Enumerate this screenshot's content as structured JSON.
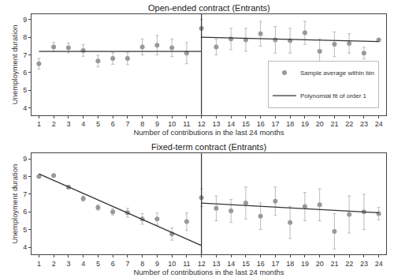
{
  "chart_data": [
    {
      "type": "scatter",
      "title": "Open-ended contract (Entrants)",
      "x_label": "Number of contributions in the last 24 months",
      "y_label": "Unemployment duration",
      "xlim": [
        0.5,
        24.5
      ],
      "ylim": [
        3.6,
        9.3
      ],
      "xticks": [
        1,
        2,
        3,
        4,
        5,
        6,
        7,
        8,
        9,
        10,
        11,
        12,
        13,
        14,
        15,
        16,
        17,
        18,
        19,
        20,
        21,
        22,
        23,
        24
      ],
      "yticks": [
        4,
        5,
        6,
        7,
        8,
        9
      ],
      "grid": false,
      "legend": "lower right",
      "vline": 12,
      "series": [
        {
          "name": "Sample average within bin",
          "type": "scatter",
          "marker": "circle",
          "color": "#999999",
          "x": [
            1,
            2,
            3,
            4,
            5,
            6,
            7,
            8,
            9,
            10,
            11,
            12,
            13,
            14,
            15,
            16,
            17,
            18,
            19,
            20,
            21,
            22,
            23,
            24
          ],
          "values": [
            6.5,
            7.45,
            7.4,
            7.25,
            6.65,
            6.8,
            6.8,
            7.45,
            7.55,
            7.4,
            7.1,
            8.5,
            7.45,
            7.9,
            7.85,
            8.2,
            7.85,
            7.8,
            8.25,
            7.2,
            7.6,
            7.65,
            7.1,
            7.85
          ],
          "errors": [
            0.3,
            0.25,
            0.28,
            0.33,
            0.33,
            0.33,
            0.35,
            0.45,
            0.55,
            0.5,
            0.6,
            0.5,
            0.45,
            0.6,
            0.65,
            0.7,
            0.75,
            0.7,
            0.65,
            0.7,
            0.7,
            0.55,
            0.33,
            0.05
          ]
        },
        {
          "name": "Polynomial fit of order 1",
          "type": "line",
          "line_style": "solid",
          "color": "#333333",
          "segments": [
            {
              "x": [
                1,
                12
              ],
              "values": [
                7.2,
                7.2
              ]
            },
            {
              "x": [
                12,
                24
              ],
              "values": [
                8.0,
                7.75
              ]
            }
          ]
        }
      ]
    },
    {
      "type": "scatter",
      "title": "Fixed-term contract (Entrants)",
      "x_label": "Number of contributions in the last 24 months",
      "y_label": "Unemployment duration",
      "xlim": [
        0.5,
        24.5
      ],
      "ylim": [
        3.6,
        9.3
      ],
      "xticks": [
        1,
        2,
        3,
        4,
        5,
        6,
        7,
        8,
        9,
        10,
        11,
        12,
        13,
        14,
        15,
        16,
        17,
        18,
        19,
        20,
        21,
        22,
        23,
        24
      ],
      "yticks": [
        4,
        5,
        6,
        7,
        8,
        9
      ],
      "grid": false,
      "vline": 12,
      "series": [
        {
          "name": "Sample average within bin",
          "type": "scatter",
          "marker": "circle",
          "color": "#999999",
          "x": [
            1,
            2,
            3,
            4,
            5,
            6,
            7,
            8,
            9,
            10,
            11,
            12,
            13,
            14,
            15,
            16,
            17,
            18,
            19,
            20,
            21,
            22,
            23,
            24
          ],
          "values": [
            8.0,
            8.05,
            7.4,
            6.75,
            6.25,
            6.0,
            5.95,
            5.6,
            5.6,
            4.75,
            5.45,
            6.8,
            6.2,
            6.05,
            6.5,
            5.75,
            6.6,
            5.4,
            6.3,
            6.4,
            4.9,
            5.85,
            6.0,
            5.9
          ],
          "errors": [
            0.05,
            0.05,
            0.1,
            0.15,
            0.15,
            0.18,
            0.25,
            0.3,
            0.35,
            0.35,
            0.5,
            0.5,
            0.7,
            0.65,
            0.9,
            0.75,
            0.8,
            0.9,
            0.8,
            0.9,
            1.0,
            1.05,
            1.0,
            0.35
          ]
        },
        {
          "name": "Polynomial fit of order 1",
          "type": "line",
          "line_style": "solid",
          "color": "#333333",
          "segments": [
            {
              "x": [
                1,
                12
              ],
              "values": [
                8.15,
                4.1
              ]
            },
            {
              "x": [
                12,
                24
              ],
              "values": [
                6.5,
                5.95
              ]
            }
          ]
        }
      ]
    }
  ]
}
